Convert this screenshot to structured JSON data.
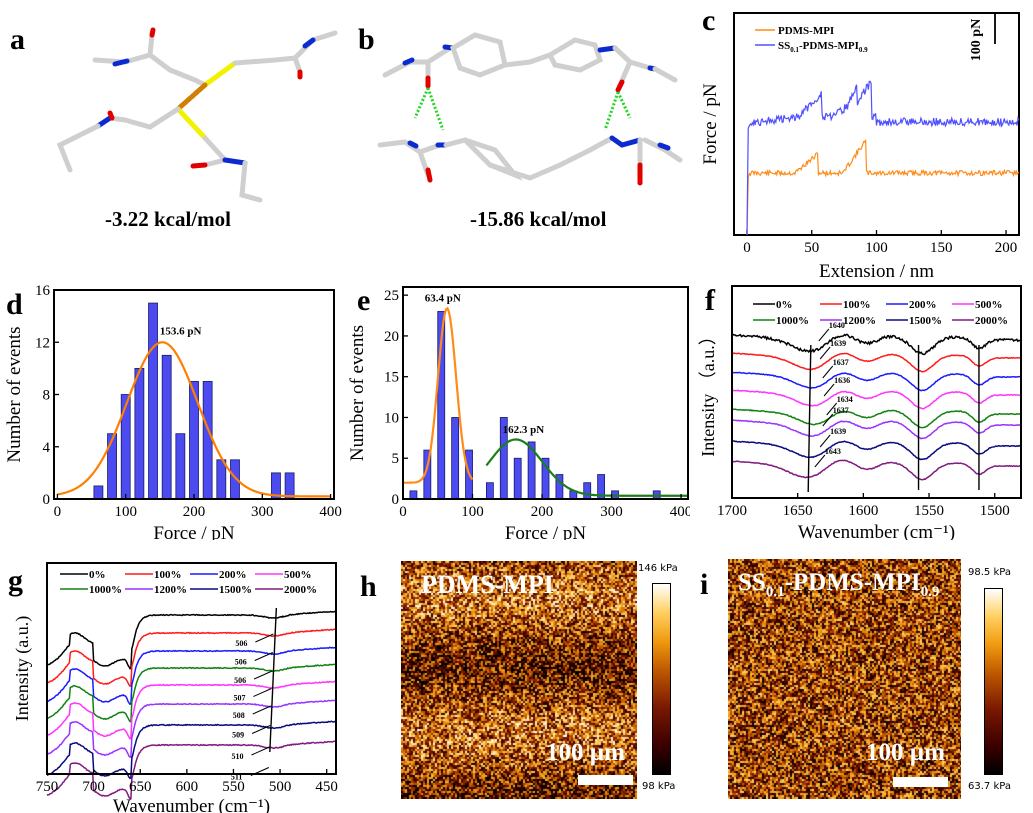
{
  "panels": {
    "a": {
      "label": "a",
      "energy": "-3.22 kcal/mol",
      "description": "disulfide interaction molecular model"
    },
    "b": {
      "label": "b",
      "energy": "-15.86 kcal/mol",
      "description": "urea hydrogen-bond dimer molecular model"
    },
    "c": {
      "label": "c",
      "scale_label": "100 pN"
    },
    "d": {
      "label": "d",
      "annotation": "153.6 pN"
    },
    "e": {
      "label": "e",
      "annotations": [
        "63.4 pN",
        "162.3 pN"
      ]
    },
    "f": {
      "label": "f"
    },
    "g": {
      "label": "g"
    },
    "h": {
      "label": "h",
      "title": "PDMS-MPI",
      "scale": "100 µm",
      "cbar_max": "146 kPa",
      "cbar_min": "98 kPa"
    },
    "i": {
      "label": "i",
      "title_main": "SS",
      "title_sub1": "0.1",
      "title_mid": "-PDMS-MPI",
      "title_sub2": "0.9",
      "scale": "100 µm",
      "cbar_max": "98.5 kPa",
      "cbar_min": "63.7 kPa"
    }
  },
  "chart_data": [
    {
      "id": "c",
      "type": "line",
      "xlabel": "Extension / nm",
      "ylabel": "Force / pN",
      "xlim": [
        -10,
        210
      ],
      "xticks": [
        0,
        50,
        100,
        150,
        200
      ],
      "scale_bar": "100 pN",
      "legend": "top-left",
      "series": [
        {
          "name": "PDMS-MPI",
          "color": "#ff8c1a",
          "baseline": 0,
          "peaks": [
            {
              "x": 55,
              "height": 0.35
            },
            {
              "x": 92,
              "height": 0.6
            }
          ],
          "plateau": 1.0
        },
        {
          "name": "SS0.1-PDMS-MPI0.9",
          "color": "#5050ff",
          "baseline": 0,
          "peaks": [
            {
              "x": 58,
              "height": 0.45
            },
            {
              "x": 85,
              "height": 0.35
            },
            {
              "x": 96,
              "height": 0.65
            }
          ],
          "plateau": 1.5
        }
      ],
      "legend_labels": {
        "s1": "PDMS-MPI",
        "s2_main": "SS",
        "s2_sub1": "0.1",
        "s2_mid": "-PDMS-MPI",
        "s2_sub2": "0.9"
      }
    },
    {
      "id": "d",
      "type": "bar",
      "xlabel": "Force / pN",
      "ylabel": "Number of events",
      "xlim": [
        -5,
        405
      ],
      "ylim": [
        0,
        16
      ],
      "xticks": [
        0,
        100,
        200,
        300,
        400
      ],
      "yticks": [
        0,
        4,
        8,
        12,
        16
      ],
      "x": [
        60,
        80,
        100,
        120,
        140,
        160,
        180,
        200,
        220,
        240,
        260,
        320,
        340
      ],
      "values": [
        1,
        5,
        8,
        10,
        15,
        11,
        5,
        9,
        9,
        3,
        3,
        2,
        2
      ],
      "fits": [
        {
          "color": "#ff7f00",
          "center": 153.6,
          "amp": 11.8,
          "sigma": 52,
          "offset": 0.2,
          "range": [
            0,
            400
          ]
        }
      ],
      "annotations": [
        {
          "text": "153.6 pN",
          "x": 150,
          "y": 12.6
        }
      ]
    },
    {
      "id": "e",
      "type": "bar",
      "xlabel": "Force / pN",
      "ylabel": "Number of events",
      "xlim": [
        0,
        410
      ],
      "ylim": [
        0,
        26
      ],
      "xticks": [
        0,
        100,
        200,
        300,
        400
      ],
      "yticks": [
        0,
        5,
        10,
        15,
        20,
        25
      ],
      "x": [
        15,
        35,
        55,
        75,
        95,
        125,
        145,
        165,
        185,
        205,
        225,
        245,
        265,
        285,
        305,
        365
      ],
      "values": [
        1,
        6,
        23,
        10,
        6,
        2,
        10,
        5,
        7,
        5,
        3,
        1,
        2,
        3,
        1,
        1
      ],
      "fits": [
        {
          "color": "#ff8c1a",
          "center": 63.4,
          "amp": 21.4,
          "sigma": 13,
          "offset": 2,
          "range": [
            0,
            100
          ]
        },
        {
          "color": "#1a7f1a",
          "center": 162.3,
          "amp": 6.9,
          "sigma": 38,
          "offset": 0.4,
          "range": [
            120,
            410
          ]
        }
      ],
      "annotations": [
        {
          "text": "63.4 pN",
          "x": 63,
          "y": 24.2
        },
        {
          "text": "162.3 pN",
          "x": 175,
          "y": 8.1
        }
      ]
    },
    {
      "id": "f",
      "type": "line",
      "xlabel": "Wavenumber (cm⁻¹)",
      "ylabel": "Intensity （a.u.）",
      "xlim": [
        1700,
        1480
      ],
      "xticks": [
        1700,
        1650,
        1600,
        1550,
        1500
      ],
      "legend": "top",
      "series_names": [
        "0%",
        "100%",
        "200%",
        "500%",
        "1000%",
        "1200%",
        "1500%",
        "2000%"
      ],
      "colors": [
        "#000000",
        "#ff1a1a",
        "#1a1aff",
        "#ff33ff",
        "#128012",
        "#9933ff",
        "#0a0a80",
        "#801a80"
      ],
      "peak_labels": [
        "1640",
        "1639",
        "1637",
        "1636",
        "1634",
        "1637",
        "1639",
        "1643"
      ],
      "reference_lines": [
        1558,
        1512
      ]
    },
    {
      "id": "g",
      "type": "line",
      "xlabel": "Wavenumber (cm⁻¹)",
      "ylabel": "Intensity (a.u.)",
      "xlim": [
        750,
        440
      ],
      "xticks": [
        750,
        700,
        650,
        600,
        550,
        500,
        450
      ],
      "legend": "top",
      "series_names": [
        "0%",
        "100%",
        "200%",
        "500%",
        "1000%",
        "1200%",
        "1500%",
        "2000%"
      ],
      "display_order": [
        "0%",
        "100%",
        "200%",
        "1000%",
        "500%",
        "1200%",
        "1500%",
        "2000%"
      ],
      "colors": [
        "#000000",
        "#ff1a1a",
        "#1a1aff",
        "#ff33ff",
        "#128012",
        "#9933ff",
        "#0a0a80",
        "#801a80"
      ],
      "peak_labels": [
        "506",
        "506",
        "506",
        "507",
        "508",
        "509",
        "510",
        "511"
      ]
    }
  ]
}
